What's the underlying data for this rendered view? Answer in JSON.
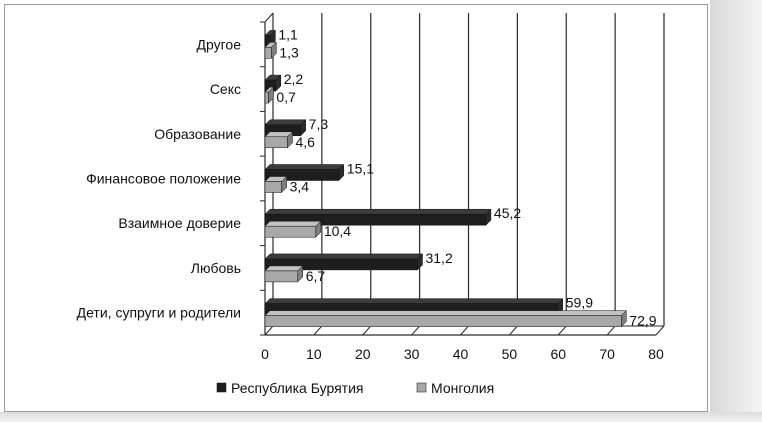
{
  "chart_data": {
    "type": "bar",
    "orientation": "horizontal",
    "style": "3d",
    "categories": [
      "Другое",
      "Секс",
      "Образование",
      "Финансовое положение",
      "Взаимное доверие",
      "Любовь",
      "Дети, супруги и родители"
    ],
    "series": [
      {
        "name": "Республика Бурятия",
        "color": "#1e1e1e",
        "values": [
          1.1,
          2.2,
          7.3,
          15.1,
          45.2,
          31.2,
          59.9
        ],
        "labels": [
          "1,1",
          "2,2",
          "7,3",
          "15,1",
          "45,2",
          "31,2",
          "59,9"
        ]
      },
      {
        "name": "Монголия",
        "color": "#a8a8a8",
        "values": [
          1.3,
          0.7,
          4.6,
          3.4,
          10.4,
          6.7,
          72.9
        ],
        "labels": [
          "1,3",
          "0,7",
          "4,6",
          "3,4",
          "10,4",
          "6,7",
          "72,9"
        ]
      }
    ],
    "xlim": [
      0,
      80
    ],
    "xticks": [
      "0",
      "10",
      "20",
      "30",
      "40",
      "50",
      "60",
      "70",
      "80"
    ],
    "grid": true,
    "legend": "bottom"
  }
}
